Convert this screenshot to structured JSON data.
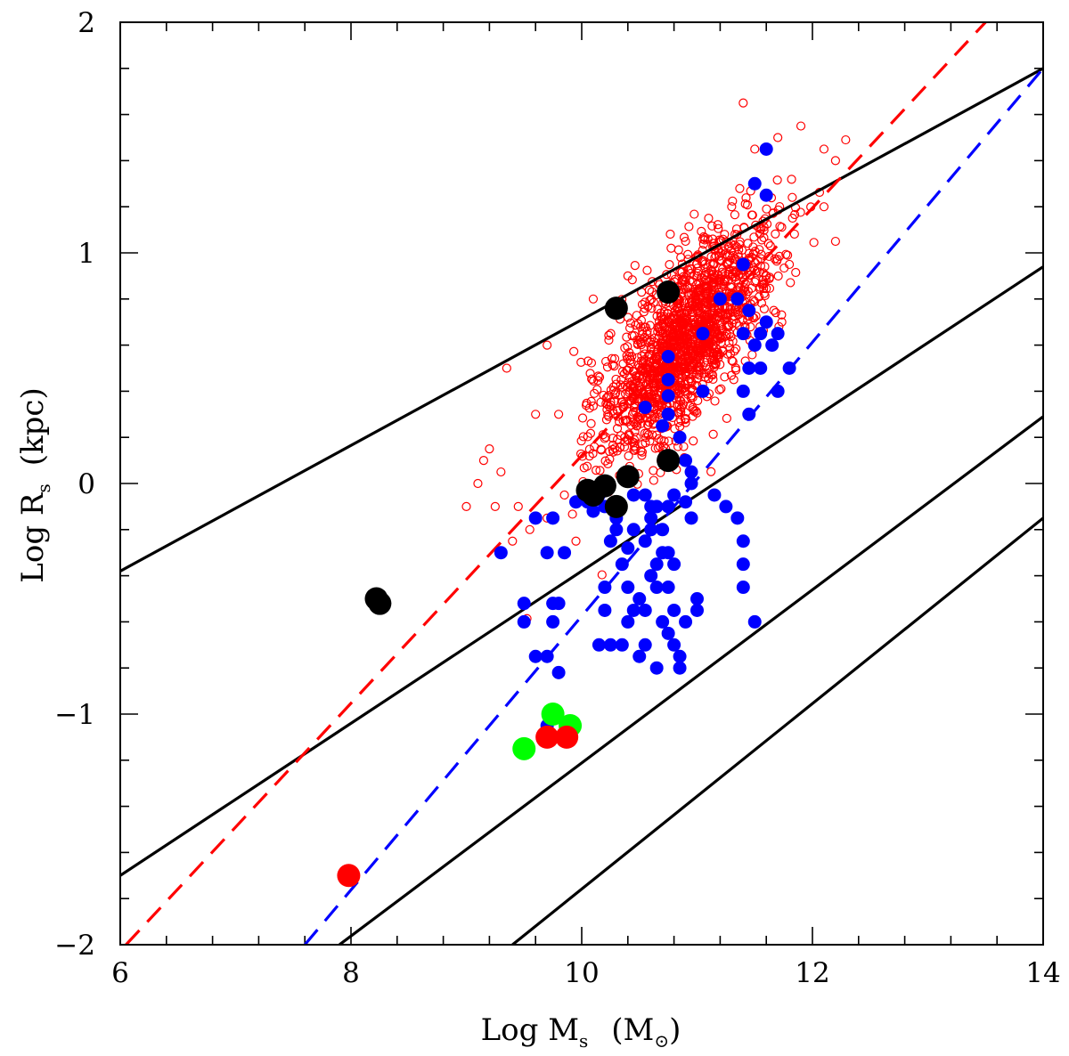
{
  "chart_data": {
    "type": "scatter",
    "title": "",
    "xlabel": "Log M",
    "xlabel_subscript": "s",
    "xlabel_unit_open": "(M",
    "xlabel_unit_subscript": "⊙",
    "xlabel_unit_close": ")",
    "ylabel": "Log R",
    "ylabel_subscript": "s",
    "ylabel_unit": "(kpc)",
    "xlim": [
      6,
      14
    ],
    "ylim": [
      -2,
      2
    ],
    "x_ticks": [
      6,
      8,
      10,
      12,
      14
    ],
    "x_tick_labels": [
      "6",
      "8",
      "10",
      "12",
      "14"
    ],
    "x_minor_step": 0.4,
    "y_ticks": [
      -2,
      -1,
      0,
      1,
      2
    ],
    "y_tick_labels": [
      "−2",
      "−1",
      "0",
      "1",
      "2"
    ],
    "y_minor_step": 0.2,
    "colors": {
      "black": "#000000",
      "red": "#ff0000",
      "blue": "#0000ff",
      "green": "#00ff00"
    },
    "lines": [
      {
        "name": "black line 1",
        "style": "solid",
        "color": "#000000",
        "x": [
          6,
          14
        ],
        "y": [
          -0.38,
          1.8
        ]
      },
      {
        "name": "black line 2",
        "style": "solid",
        "color": "#000000",
        "x": [
          6,
          14
        ],
        "y": [
          -1.7,
          0.94
        ]
      },
      {
        "name": "black line 3",
        "style": "solid",
        "color": "#000000",
        "x": [
          7.9,
          14
        ],
        "y": [
          -2.0,
          0.29
        ]
      },
      {
        "name": "black line 4",
        "style": "solid",
        "color": "#000000",
        "x": [
          9.4,
          14
        ],
        "y": [
          -2.0,
          -0.15
        ]
      },
      {
        "name": "red dashed fit",
        "style": "dashed",
        "color": "#ff0000",
        "x": [
          6.05,
          13.5
        ],
        "y": [
          -2.0,
          2.0
        ]
      },
      {
        "name": "blue dashed fit",
        "style": "dashed",
        "color": "#0000ff",
        "x": [
          7.6,
          14
        ],
        "y": [
          -2.0,
          1.8
        ]
      }
    ],
    "series": [
      {
        "name": "red open circles (dense cloud)",
        "marker": "open-circle",
        "color": "#ff0000",
        "cloud": {
          "trend_x": [
            9.9,
            11.9
          ],
          "trend_y": [
            0.05,
            1.2
          ],
          "n": 1600,
          "spread_along": 1.0,
          "spread_perp": 0.15
        },
        "points": [
          [
            9.0,
            -0.1
          ],
          [
            9.15,
            0.1
          ],
          [
            9.3,
            0.05
          ],
          [
            9.4,
            -0.25
          ],
          [
            9.6,
            0.3
          ],
          [
            9.7,
            0.6
          ],
          [
            9.8,
            0.3
          ],
          [
            9.35,
            0.5
          ],
          [
            9.45,
            -0.1
          ],
          [
            9.55,
            -0.2
          ],
          [
            9.7,
            -0.15
          ],
          [
            9.85,
            -0.05
          ],
          [
            9.95,
            -0.25
          ],
          [
            10.1,
            0.8
          ],
          [
            10.4,
            0.9
          ],
          [
            10.7,
            0.85
          ],
          [
            10.9,
            1.05
          ],
          [
            11.1,
            1.15
          ],
          [
            11.3,
            1.2
          ],
          [
            11.4,
            1.65
          ],
          [
            11.5,
            1.45
          ],
          [
            11.7,
            1.5
          ],
          [
            11.9,
            1.55
          ],
          [
            12.1,
            1.45
          ],
          [
            12.2,
            1.4
          ],
          [
            12.1,
            1.2
          ],
          [
            12.2,
            1.05
          ],
          [
            11.8,
            0.95
          ],
          [
            11.6,
            0.9
          ],
          [
            9.2,
            0.15
          ],
          [
            9.1,
            0.0
          ],
          [
            9.25,
            -0.1
          ]
        ]
      },
      {
        "name": "blue filled circles",
        "marker": "filled-circle",
        "color": "#0000ff",
        "points": [
          [
            11.6,
            1.45
          ],
          [
            11.5,
            1.3
          ],
          [
            11.6,
            1.25
          ],
          [
            11.4,
            0.95
          ],
          [
            11.2,
            0.8
          ],
          [
            11.35,
            0.8
          ],
          [
            11.45,
            0.75
          ],
          [
            11.6,
            0.7
          ],
          [
            11.55,
            0.65
          ],
          [
            11.7,
            0.65
          ],
          [
            11.4,
            0.65
          ],
          [
            11.05,
            0.65
          ],
          [
            11.5,
            0.6
          ],
          [
            11.65,
            0.6
          ],
          [
            11.55,
            0.5
          ],
          [
            11.45,
            0.5
          ],
          [
            11.8,
            0.5
          ],
          [
            10.75,
            0.55
          ],
          [
            10.75,
            0.45
          ],
          [
            10.75,
            0.38
          ],
          [
            10.75,
            0.3
          ],
          [
            11.05,
            0.4
          ],
          [
            11.4,
            0.4
          ],
          [
            11.7,
            0.4
          ],
          [
            11.45,
            0.3
          ],
          [
            10.55,
            0.33
          ],
          [
            10.7,
            0.25
          ],
          [
            10.85,
            0.2
          ],
          [
            10.9,
            0.1
          ],
          [
            10.95,
            0.05
          ],
          [
            10.95,
            0.0
          ],
          [
            10.6,
            -0.2
          ],
          [
            10.65,
            -0.1
          ],
          [
            10.75,
            -0.1
          ],
          [
            10.8,
            -0.05
          ],
          [
            10.9,
            -0.08
          ],
          [
            10.95,
            -0.15
          ],
          [
            10.6,
            -0.1
          ],
          [
            10.7,
            -0.2
          ],
          [
            10.75,
            -0.3
          ],
          [
            10.65,
            -0.35
          ],
          [
            10.55,
            -0.25
          ],
          [
            10.45,
            -0.2
          ],
          [
            10.4,
            -0.28
          ],
          [
            10.3,
            -0.2
          ],
          [
            10.25,
            -0.25
          ],
          [
            10.2,
            -0.1
          ],
          [
            10.05,
            -0.08
          ],
          [
            10.1,
            -0.12
          ],
          [
            10.45,
            -0.05
          ],
          [
            10.55,
            -0.05
          ],
          [
            10.3,
            -0.15
          ],
          [
            10.35,
            -0.35
          ],
          [
            10.4,
            -0.45
          ],
          [
            10.45,
            -0.55
          ],
          [
            10.5,
            -0.5
          ],
          [
            10.55,
            -0.55
          ],
          [
            10.6,
            -0.4
          ],
          [
            10.65,
            -0.45
          ],
          [
            10.7,
            -0.3
          ],
          [
            10.75,
            -0.45
          ],
          [
            10.8,
            -0.35
          ],
          [
            10.8,
            -0.55
          ],
          [
            10.7,
            -0.6
          ],
          [
            10.75,
            -0.65
          ],
          [
            10.8,
            -0.7
          ],
          [
            10.85,
            -0.75
          ],
          [
            10.9,
            -0.6
          ],
          [
            11.0,
            -0.5
          ],
          [
            11.0,
            -0.55
          ],
          [
            11.15,
            -0.05
          ],
          [
            11.25,
            -0.1
          ],
          [
            11.35,
            -0.15
          ],
          [
            11.4,
            -0.25
          ],
          [
            11.4,
            -0.35
          ],
          [
            11.4,
            -0.45
          ],
          [
            11.5,
            -0.6
          ],
          [
            10.2,
            -0.45
          ],
          [
            10.2,
            -0.55
          ],
          [
            10.15,
            -0.7
          ],
          [
            10.25,
            -0.7
          ],
          [
            10.35,
            -0.7
          ],
          [
            10.4,
            -0.6
          ],
          [
            10.5,
            -0.75
          ],
          [
            10.55,
            -0.7
          ],
          [
            10.65,
            -0.8
          ],
          [
            10.85,
            -0.8
          ],
          [
            10.6,
            -0.15
          ],
          [
            9.3,
            -0.3
          ],
          [
            9.5,
            -0.52
          ],
          [
            9.5,
            -0.6
          ],
          [
            9.6,
            -0.75
          ],
          [
            9.7,
            -0.75
          ],
          [
            9.8,
            -0.82
          ],
          [
            9.75,
            -0.52
          ],
          [
            9.8,
            -0.52
          ],
          [
            9.7,
            -0.3
          ],
          [
            9.6,
            -0.15
          ],
          [
            9.75,
            -0.15
          ],
          [
            9.95,
            -0.08
          ],
          [
            10.15,
            -0.05
          ],
          [
            9.7,
            -1.05
          ],
          [
            9.75,
            -0.6
          ],
          [
            9.85,
            -0.3
          ]
        ]
      },
      {
        "name": "black large filled circles",
        "marker": "filled-circle-large",
        "color": "#000000",
        "points": [
          [
            8.22,
            -0.5
          ],
          [
            8.25,
            -0.52
          ],
          [
            10.3,
            0.76
          ],
          [
            10.75,
            0.83
          ],
          [
            10.05,
            -0.03
          ],
          [
            10.1,
            -0.05
          ],
          [
            10.2,
            -0.01
          ],
          [
            10.4,
            0.03
          ],
          [
            10.3,
            -0.1
          ],
          [
            10.75,
            0.1
          ]
        ]
      },
      {
        "name": "green large filled circles",
        "marker": "filled-circle-large",
        "color": "#00ff00",
        "points": [
          [
            9.5,
            -1.15
          ],
          [
            9.75,
            -1.0
          ],
          [
            9.9,
            -1.05
          ]
        ]
      },
      {
        "name": "red large filled circles",
        "marker": "filled-circle-large",
        "color": "#ff0000",
        "points": [
          [
            7.98,
            -1.7
          ],
          [
            9.7,
            -1.1
          ],
          [
            9.87,
            -1.1
          ]
        ]
      }
    ]
  }
}
